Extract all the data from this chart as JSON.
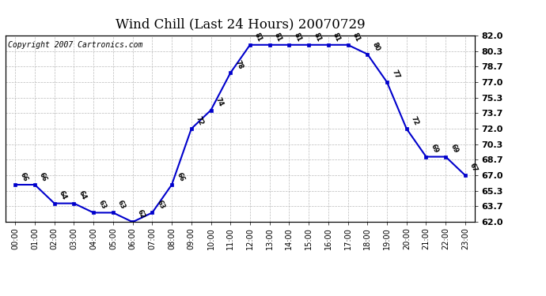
{
  "title": "Wind Chill (Last 24 Hours) 20070729",
  "copyright": "Copyright 2007 Cartronics.com",
  "hours": [
    0,
    1,
    2,
    3,
    4,
    5,
    6,
    7,
    8,
    9,
    10,
    11,
    12,
    13,
    14,
    15,
    16,
    17,
    18,
    19,
    20,
    21,
    22,
    23
  ],
  "values": [
    66,
    66,
    64,
    64,
    63,
    63,
    62,
    63,
    66,
    72,
    74,
    78,
    81,
    81,
    81,
    81,
    81,
    81,
    80,
    77,
    72,
    69,
    69,
    67
  ],
  "line_color": "#0000cc",
  "marker_color": "#0000cc",
  "bg_color": "#ffffff",
  "grid_color": "#bbbbbb",
  "ylim": [
    62.0,
    82.0
  ],
  "yticks_right": [
    62.0,
    63.7,
    65.3,
    67.0,
    68.7,
    70.3,
    72.0,
    73.7,
    75.3,
    77.0,
    78.7,
    80.3,
    82.0
  ],
  "xlabel_fontsize": 7,
  "ylabel_fontsize": 8,
  "title_fontsize": 12,
  "annotation_fontsize": 6,
  "copyright_fontsize": 7
}
